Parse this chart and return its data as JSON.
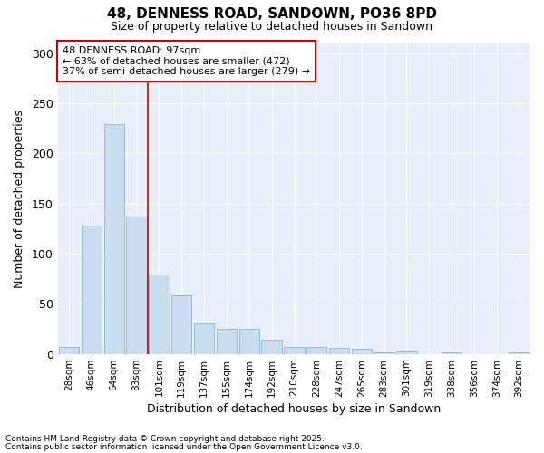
{
  "title_line1": "48, DENNESS ROAD, SANDOWN, PO36 8PD",
  "title_line2": "Size of property relative to detached houses in Sandown",
  "xlabel": "Distribution of detached houses by size in Sandown",
  "ylabel": "Number of detached properties",
  "categories": [
    "28sqm",
    "46sqm",
    "64sqm",
    "83sqm",
    "101sqm",
    "119sqm",
    "137sqm",
    "155sqm",
    "174sqm",
    "192sqm",
    "210sqm",
    "228sqm",
    "247sqm",
    "265sqm",
    "283sqm",
    "301sqm",
    "319sqm",
    "338sqm",
    "356sqm",
    "374sqm",
    "392sqm"
  ],
  "values": [
    7,
    128,
    229,
    137,
    79,
    58,
    30,
    25,
    25,
    14,
    7,
    7,
    6,
    5,
    1,
    3,
    0,
    1,
    0,
    0,
    1
  ],
  "bar_color": "#c9ddf0",
  "bar_edge_color": "#8ab4d8",
  "vline_x": 4.0,
  "vline_color": "#cc0000",
  "annotation_text": "48 DENNESS ROAD: 97sqm\n← 63% of detached houses are smaller (472)\n37% of semi-detached houses are larger (279) →",
  "annotation_box_facecolor": "#ffffff",
  "annotation_box_edgecolor": "#cc0000",
  "footnote1": "Contains HM Land Registry data © Crown copyright and database right 2025.",
  "footnote2": "Contains public sector information licensed under the Open Government Licence v3.0.",
  "fig_bg_color": "#ffffff",
  "plot_bg_color": "#e8eff8",
  "grid_color": "#ffffff",
  "ylim": [
    0,
    310
  ],
  "yticks": [
    0,
    50,
    100,
    150,
    200,
    250,
    300
  ]
}
